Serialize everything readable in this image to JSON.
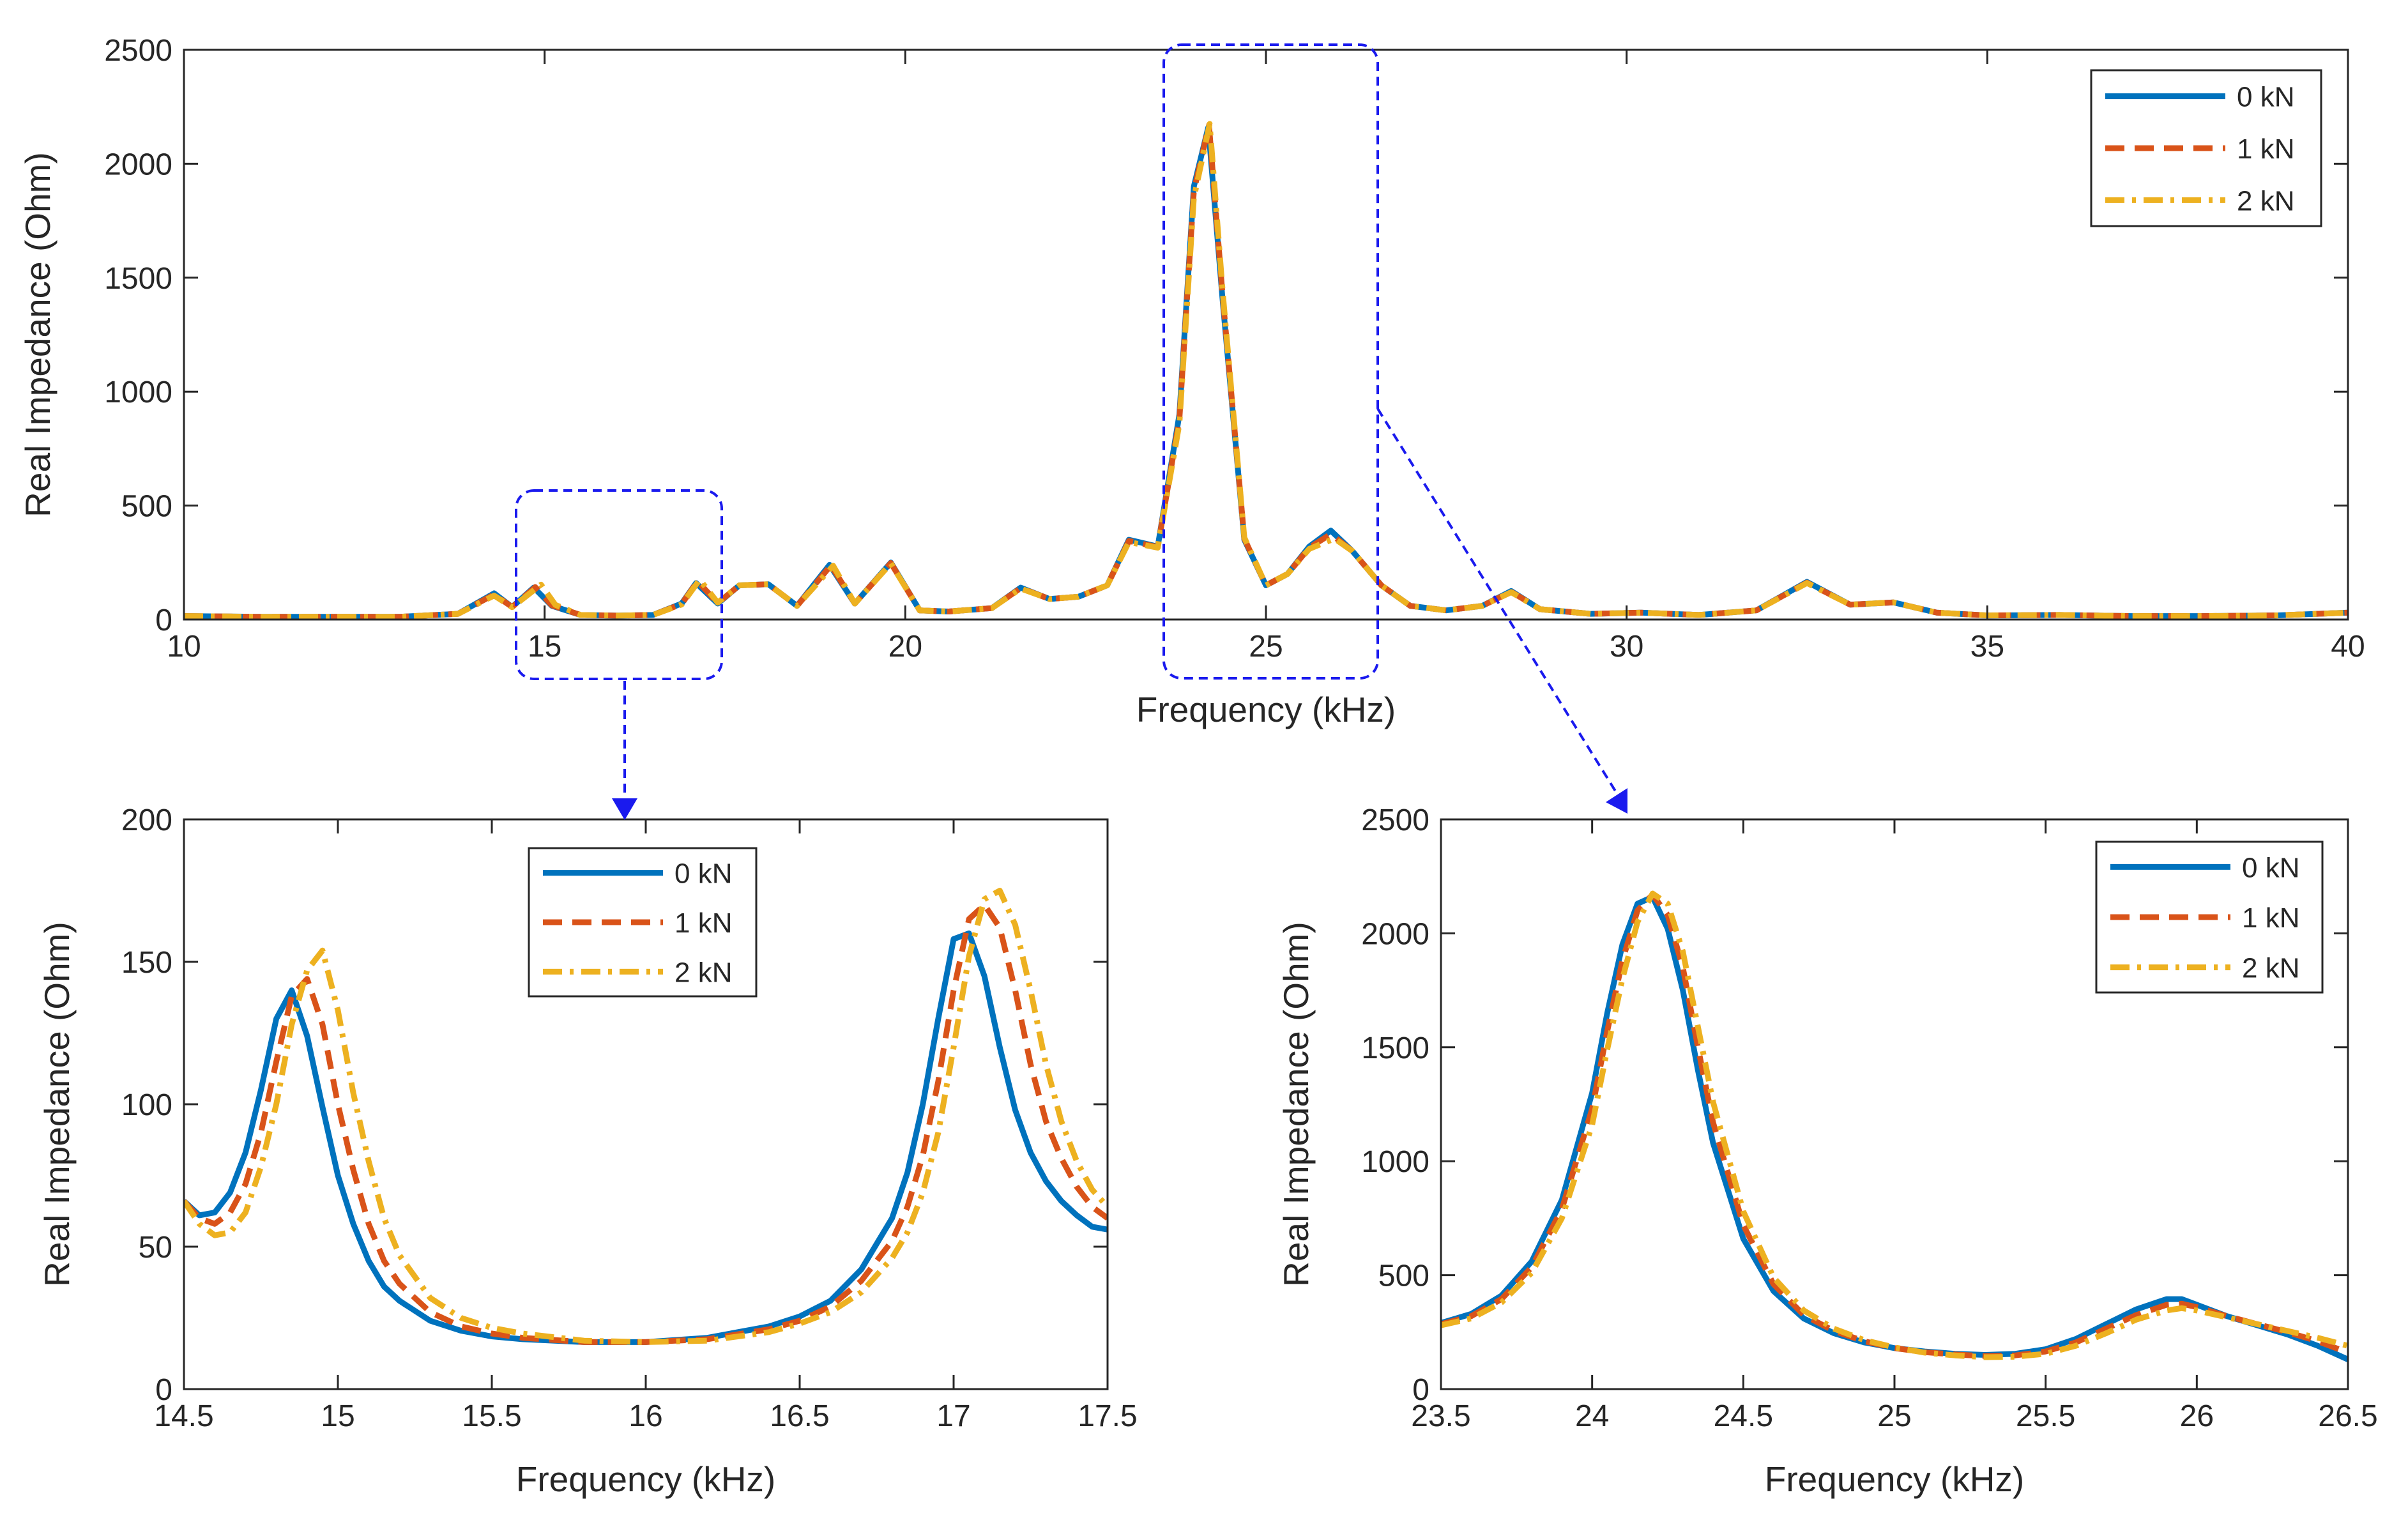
{
  "chart_data": [
    {
      "type": "line",
      "panel": "overview",
      "xlabel": "Frequency (kHz)",
      "ylabel": "Real Impedance (Ohm)",
      "xlim": [
        10,
        40
      ],
      "ylim": [
        0,
        2500
      ],
      "xticks": [
        10,
        15,
        20,
        25,
        30,
        35,
        40
      ],
      "yticks": [
        0,
        500,
        1000,
        1500,
        2000,
        2500
      ],
      "legend_position": "top-right",
      "series": [
        {
          "name": "0 kN",
          "color": "#0072BD",
          "dash": "solid",
          "x": [
            10,
            11,
            12,
            13,
            13.8,
            14.3,
            14.55,
            14.85,
            15.1,
            15.5,
            16,
            16.5,
            16.9,
            17.1,
            17.4,
            17.7,
            18.1,
            18.5,
            18.95,
            19.3,
            19.8,
            20.2,
            20.6,
            21.2,
            21.6,
            22,
            22.4,
            22.8,
            23.1,
            23.5,
            23.8,
            24,
            24.2,
            24.4,
            24.7,
            25,
            25.3,
            25.6,
            25.9,
            26.2,
            26.6,
            27,
            27.5,
            28,
            28.4,
            28.8,
            29.5,
            30.2,
            31,
            31.8,
            32.5,
            33.1,
            33.7,
            34.3,
            35,
            36,
            37,
            38,
            39,
            40
          ],
          "y": [
            15,
            12,
            12,
            12,
            25,
            115,
            55,
            140,
            60,
            20,
            17,
            20,
            70,
            160,
            70,
            150,
            155,
            60,
            240,
            70,
            250,
            40,
            35,
            50,
            140,
            90,
            100,
            150,
            350,
            320,
            900,
            1900,
            2160,
            1400,
            350,
            150,
            200,
            320,
            390,
            300,
            150,
            60,
            40,
            60,
            125,
            45,
            25,
            30,
            20,
            40,
            165,
            65,
            75,
            30,
            18,
            20,
            15,
            15,
            18,
            30
          ]
        },
        {
          "name": "1 kN",
          "color": "#D95319",
          "dash": "dashed",
          "x": [
            10,
            11,
            12,
            13,
            13.8,
            14.3,
            14.55,
            14.87,
            15.1,
            15.5,
            16,
            16.5,
            16.9,
            17.12,
            17.4,
            17.7,
            18.1,
            18.5,
            18.97,
            19.3,
            19.8,
            20.2,
            20.6,
            21.2,
            21.6,
            22,
            22.4,
            22.8,
            23.1,
            23.5,
            23.8,
            24,
            24.21,
            24.4,
            24.7,
            25,
            25.3,
            25.6,
            25.9,
            26.2,
            26.6,
            27,
            27.5,
            28,
            28.4,
            28.8,
            29.5,
            30.2,
            31,
            31.8,
            32.5,
            33.1,
            33.7,
            34.3,
            35,
            36,
            37,
            38,
            39,
            40
          ],
          "y": [
            15,
            12,
            12,
            12,
            25,
            110,
            55,
            142,
            62,
            20,
            17,
            20,
            68,
            168,
            72,
            150,
            155,
            60,
            238,
            70,
            248,
            40,
            35,
            50,
            138,
            90,
            100,
            150,
            345,
            318,
            880,
            1880,
            2170,
            1420,
            355,
            150,
            200,
            315,
            375,
            300,
            150,
            60,
            40,
            60,
            122,
            45,
            25,
            30,
            20,
            40,
            162,
            65,
            75,
            30,
            18,
            20,
            15,
            15,
            18,
            30
          ]
        },
        {
          "name": "2 kN",
          "color": "#EDB120",
          "dash": "dashdot",
          "x": [
            10,
            11,
            12,
            13,
            13.8,
            14.3,
            14.55,
            14.95,
            15.15,
            15.5,
            16,
            16.5,
            16.9,
            17.15,
            17.4,
            17.7,
            18.1,
            18.5,
            19,
            19.3,
            19.8,
            20.2,
            20.6,
            21.2,
            21.6,
            22,
            22.4,
            22.8,
            23.1,
            23.5,
            23.8,
            24,
            24.22,
            24.4,
            24.7,
            25,
            25.3,
            25.6,
            25.95,
            26.2,
            26.6,
            27,
            27.5,
            28,
            28.4,
            28.8,
            29.5,
            30.2,
            31,
            31.8,
            32.5,
            33.1,
            33.7,
            34.3,
            35,
            36,
            37,
            38,
            39,
            40
          ],
          "y": [
            15,
            12,
            12,
            12,
            25,
            105,
            54,
            153,
            64,
            20,
            17,
            20,
            66,
            175,
            74,
            150,
            155,
            60,
            236,
            70,
            246,
            40,
            35,
            50,
            136,
            90,
            100,
            150,
            340,
            315,
            860,
            1850,
            2175,
            1440,
            360,
            150,
            200,
            310,
            355,
            300,
            150,
            60,
            40,
            60,
            120,
            45,
            25,
            30,
            20,
            40,
            160,
            65,
            75,
            30,
            18,
            20,
            15,
            15,
            18,
            30
          ]
        }
      ]
    },
    {
      "type": "line",
      "panel": "zoom-left",
      "xlabel": "Frequency (kHz)",
      "ylabel": "Real Impedance (Ohm)",
      "xlim": [
        14.5,
        17.5
      ],
      "ylim": [
        0,
        200
      ],
      "xticks": [
        "14.5",
        "15",
        "15.5",
        "16",
        "16.5",
        "17",
        "17.5"
      ],
      "yticks": [
        0,
        50,
        100,
        150,
        200
      ],
      "legend_position": "top-center",
      "series": [
        {
          "name": "0 kN",
          "color": "#0072BD",
          "dash": "solid",
          "x": [
            14.5,
            14.55,
            14.6,
            14.65,
            14.7,
            14.75,
            14.8,
            14.85,
            14.9,
            14.95,
            15,
            15.05,
            15.1,
            15.15,
            15.2,
            15.3,
            15.4,
            15.5,
            15.6,
            15.8,
            16,
            16.2,
            16.4,
            16.5,
            16.6,
            16.7,
            16.8,
            16.85,
            16.9,
            16.95,
            17,
            17.05,
            17.1,
            17.15,
            17.2,
            17.25,
            17.3,
            17.35,
            17.4,
            17.45,
            17.5
          ],
          "y": [
            66,
            61,
            62,
            69,
            83,
            105,
            130,
            140,
            124,
            99,
            75,
            58,
            45,
            36,
            31,
            24,
            20.5,
            18.5,
            17.5,
            16.5,
            16.5,
            18,
            22,
            25.5,
            31,
            42,
            60,
            76,
            100,
            130,
            158,
            160,
            145,
            120,
            98,
            83,
            73,
            66,
            61,
            57,
            56
          ]
        },
        {
          "name": "1 kN",
          "color": "#D95319",
          "dash": "dashed",
          "x": [
            14.5,
            14.55,
            14.6,
            14.65,
            14.7,
            14.75,
            14.8,
            14.85,
            14.9,
            14.95,
            15,
            15.05,
            15.1,
            15.15,
            15.2,
            15.3,
            15.4,
            15.5,
            15.6,
            15.8,
            16,
            16.2,
            16.4,
            16.5,
            16.6,
            16.7,
            16.8,
            16.85,
            16.9,
            16.95,
            17,
            17.05,
            17.1,
            17.15,
            17.2,
            17.25,
            17.3,
            17.35,
            17.4,
            17.45,
            17.5
          ],
          "y": [
            66,
            60,
            58,
            62,
            72,
            90,
            115,
            138,
            144,
            128,
            100,
            77,
            58,
            45,
            37,
            27,
            22,
            19.5,
            18,
            16.5,
            16.5,
            17.5,
            21,
            24,
            29,
            38,
            52,
            64,
            82,
            108,
            140,
            165,
            170,
            162,
            140,
            114,
            94,
            81,
            71,
            64,
            60
          ]
        },
        {
          "name": "2 kN",
          "color": "#EDB120",
          "dash": "dashdot",
          "x": [
            14.5,
            14.55,
            14.6,
            14.65,
            14.7,
            14.75,
            14.8,
            14.85,
            14.9,
            14.95,
            15,
            15.05,
            15.1,
            15.15,
            15.2,
            15.3,
            15.4,
            15.5,
            15.6,
            15.8,
            16,
            16.2,
            16.4,
            16.5,
            16.6,
            16.7,
            16.8,
            16.85,
            16.9,
            16.95,
            17,
            17.05,
            17.1,
            17.15,
            17.2,
            17.25,
            17.3,
            17.35,
            17.4,
            17.45,
            17.5
          ],
          "y": [
            66,
            58,
            54,
            55,
            62,
            78,
            100,
            128,
            147,
            154,
            133,
            104,
            80,
            60,
            47,
            32,
            25,
            21.5,
            19.5,
            17,
            16.5,
            17,
            20,
            23,
            27,
            34,
            46,
            55,
            69,
            90,
            120,
            152,
            172,
            175,
            163,
            140,
            114,
            94,
            80,
            70,
            64
          ]
        }
      ]
    },
    {
      "type": "line",
      "panel": "zoom-right",
      "xlabel": "Frequency (kHz)",
      "ylabel": "Real Impedance (Ohm)",
      "xlim": [
        23.5,
        26.5
      ],
      "ylim": [
        0,
        2500
      ],
      "xticks": [
        "23.5",
        "24",
        "24.5",
        "25",
        "25.5",
        "26",
        "26.5"
      ],
      "yticks": [
        0,
        500,
        1000,
        1500,
        2000,
        2500
      ],
      "legend_position": "top-right",
      "series": [
        {
          "name": "0 kN",
          "color": "#0072BD",
          "dash": "solid",
          "x": [
            23.5,
            23.6,
            23.7,
            23.8,
            23.9,
            24,
            24.05,
            24.1,
            24.15,
            24.2,
            24.25,
            24.3,
            24.35,
            24.4,
            24.5,
            24.6,
            24.7,
            24.8,
            24.9,
            25,
            25.1,
            25.2,
            25.3,
            25.4,
            25.5,
            25.6,
            25.7,
            25.8,
            25.9,
            25.95,
            26,
            26.1,
            26.2,
            26.3,
            26.4,
            26.5
          ],
          "y": [
            290,
            330,
            410,
            560,
            830,
            1300,
            1650,
            1950,
            2130,
            2160,
            2020,
            1750,
            1400,
            1080,
            660,
            430,
            310,
            245,
            205,
            180,
            165,
            155,
            150,
            155,
            175,
            220,
            285,
            350,
            395,
            395,
            370,
            320,
            280,
            240,
            190,
            130
          ]
        },
        {
          "name": "1 kN",
          "color": "#D95319",
          "dash": "dashed",
          "x": [
            23.5,
            23.6,
            23.7,
            23.8,
            23.9,
            24,
            24.05,
            24.1,
            24.15,
            24.2,
            24.25,
            24.3,
            24.35,
            24.4,
            24.5,
            24.6,
            24.7,
            24.8,
            24.9,
            25,
            25.1,
            25.2,
            25.3,
            25.4,
            25.5,
            25.6,
            25.7,
            25.8,
            25.9,
            25.95,
            26,
            26.1,
            26.2,
            26.3,
            26.4,
            26.5
          ],
          "y": [
            285,
            320,
            395,
            535,
            790,
            1230,
            1570,
            1880,
            2100,
            2170,
            2080,
            1850,
            1500,
            1170,
            720,
            460,
            325,
            255,
            210,
            180,
            162,
            152,
            145,
            148,
            165,
            205,
            265,
            325,
            370,
            375,
            360,
            320,
            285,
            250,
            210,
            160
          ]
        },
        {
          "name": "2 kN",
          "color": "#EDB120",
          "dash": "dashdot",
          "x": [
            23.5,
            23.6,
            23.7,
            23.8,
            23.9,
            24,
            24.05,
            24.1,
            24.15,
            24.2,
            24.25,
            24.3,
            24.35,
            24.4,
            24.5,
            24.6,
            24.7,
            24.8,
            24.9,
            25,
            25.1,
            25.2,
            25.3,
            25.4,
            25.5,
            25.6,
            25.7,
            25.8,
            25.9,
            25.95,
            26,
            26.1,
            26.2,
            26.3,
            26.4,
            26.5
          ],
          "y": [
            280,
            310,
            380,
            510,
            750,
            1160,
            1490,
            1800,
            2050,
            2175,
            2130,
            1920,
            1590,
            1260,
            780,
            490,
            345,
            265,
            215,
            183,
            160,
            148,
            140,
            142,
            155,
            190,
            245,
            305,
            345,
            355,
            345,
            315,
            285,
            255,
            225,
            190
          ]
        }
      ]
    }
  ]
}
